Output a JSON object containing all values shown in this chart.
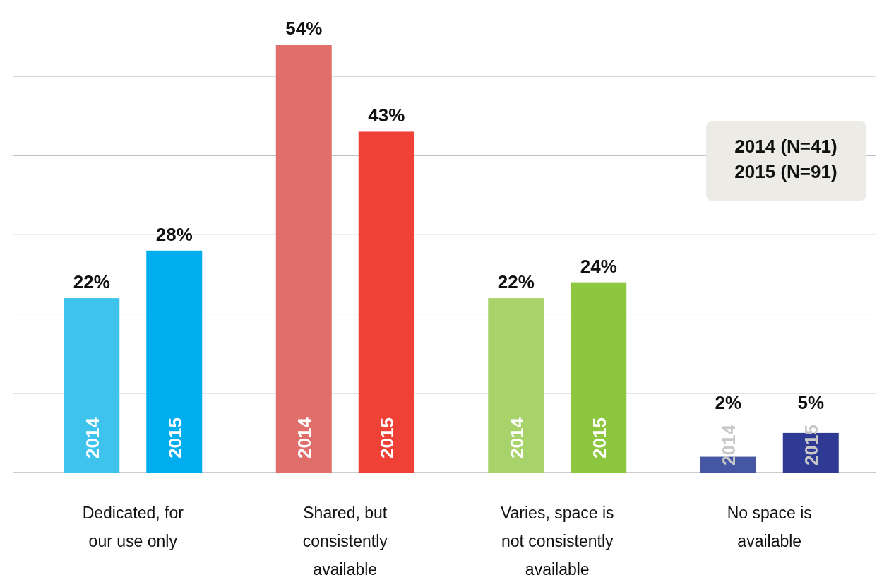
{
  "chart_data": {
    "type": "bar",
    "categories": [
      "Dedicated, for our use only",
      "Shared, but consistently available",
      "Varies, space is not consistently available",
      "No space is available"
    ],
    "series": [
      {
        "name": "2014",
        "colors": [
          "#3dc3ec",
          "#e06f6b",
          "#a8d26a",
          "#4556a5"
        ],
        "values": [
          22,
          54,
          22,
          2
        ],
        "value_labels": [
          "22%",
          "54%",
          "22%",
          "2%"
        ]
      },
      {
        "name": "2015",
        "colors": [
          "#00aeef",
          "#ef4136",
          "#8dc63f",
          "#2e3a94"
        ],
        "values": [
          28,
          43,
          24,
          5
        ],
        "value_labels": [
          "28%",
          "43%",
          "24%",
          "5%"
        ]
      }
    ],
    "yticks": [
      {
        "value": 0,
        "label": null
      },
      {
        "value": 10,
        "label": null
      },
      {
        "value": 20,
        "label": null
      },
      {
        "value": 30,
        "label": null
      },
      {
        "value": 40,
        "label": null
      },
      {
        "value": 50,
        "label": null
      }
    ],
    "grid": "y",
    "tick_labels": "x",
    "annotations": [
      "2014 (N=41)",
      "2015 (N=91)"
    ]
  }
}
